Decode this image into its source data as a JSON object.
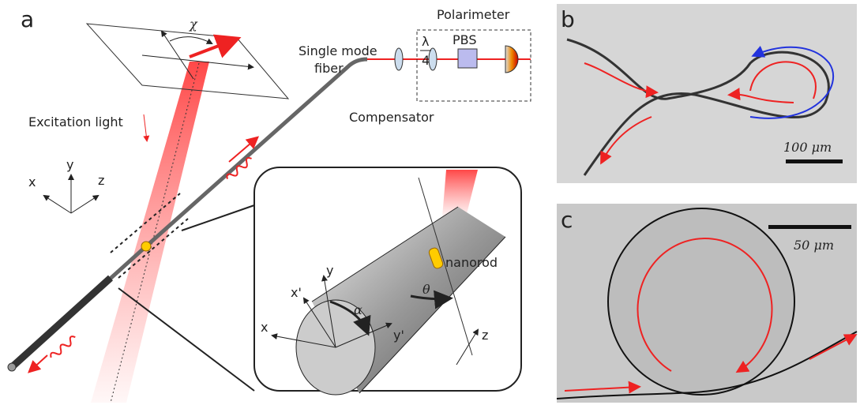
{
  "panel_a": {
    "label": "a",
    "chi": "χ",
    "polarimeter": "Polarimeter",
    "lambda": "λ",
    "four": "4",
    "pbs": "PBS",
    "fiber_line1": "Single mode",
    "fiber_line2": "fiber",
    "compensator": "Compensator",
    "excitation": "Excitation light",
    "axes": [
      "x",
      "y",
      "z"
    ],
    "inset": {
      "nanorod": "nanorod",
      "x_prime": "x'",
      "y": "y",
      "alpha": "α",
      "theta": "θ",
      "x": "x",
      "y_prime": "y'",
      "z": "z"
    }
  },
  "panel_b": {
    "label": "b",
    "scale": "100 μm"
  },
  "panel_c": {
    "label": "c",
    "scale": "50 μm"
  }
}
